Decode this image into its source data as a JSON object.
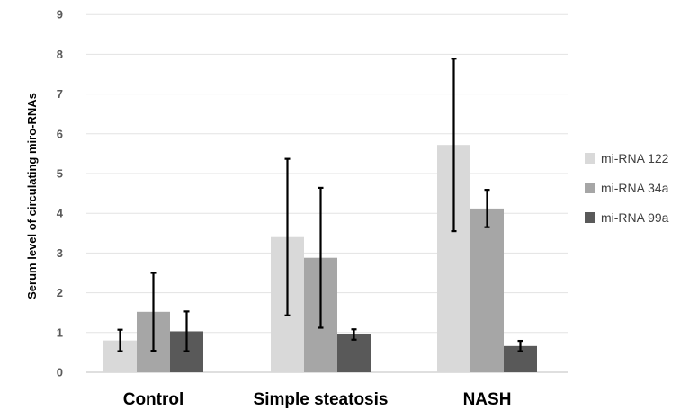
{
  "chart_data": {
    "type": "bar",
    "title": "",
    "xlabel": "",
    "ylabel": "Serum level of circulating miro-RNAs",
    "ylim": [
      0,
      9
    ],
    "yticks": [
      0,
      1,
      2,
      3,
      4,
      5,
      6,
      7,
      8,
      9
    ],
    "grid": true,
    "legend_position": "right",
    "categories": [
      "Control",
      "Simple steatosis",
      "NASH"
    ],
    "series": [
      {
        "name": "mi-RNA 122",
        "color": "#d9d9d9",
        "values": [
          0.8,
          3.4,
          5.72
        ],
        "error": [
          0.27,
          1.97,
          2.17
        ]
      },
      {
        "name": "mi-RNA 34a",
        "color": "#a6a6a6",
        "values": [
          1.52,
          2.88,
          4.12
        ],
        "error": [
          0.98,
          1.76,
          0.47
        ]
      },
      {
        "name": "mi-RNA 99a",
        "color": "#595959",
        "values": [
          1.03,
          0.95,
          0.66
        ],
        "error": [
          0.5,
          0.13,
          0.13
        ]
      }
    ]
  }
}
